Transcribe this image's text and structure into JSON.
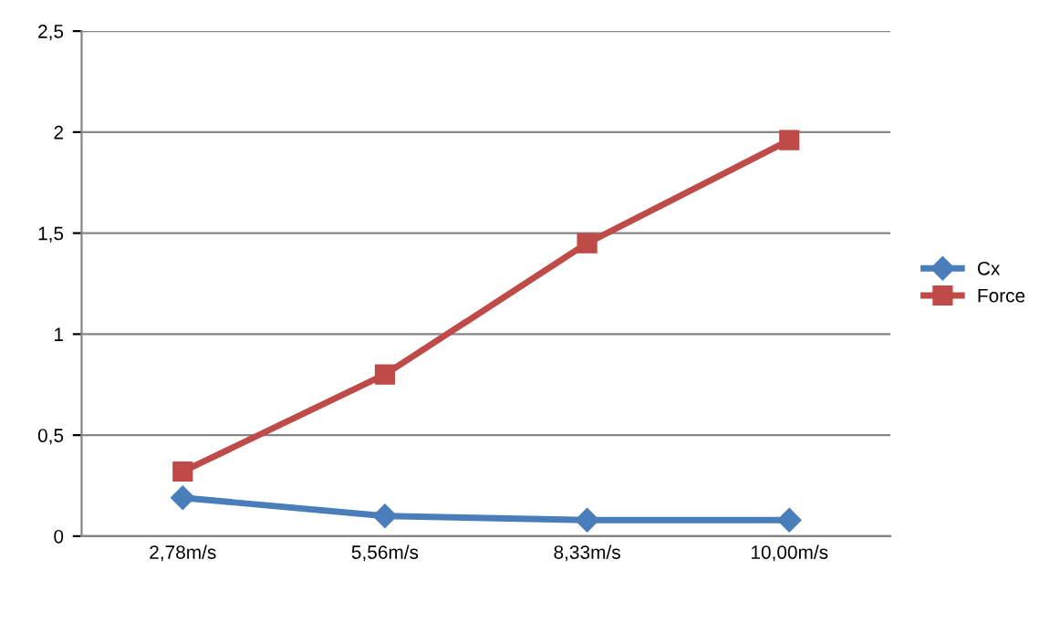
{
  "chart_data": {
    "type": "line",
    "categories": [
      "2,78m/s",
      "5,56m/s",
      "8,33m/s",
      "10,00m/s"
    ],
    "series": [
      {
        "name": "Cx",
        "color": "#4a7ebb",
        "marker": "diamond",
        "values": [
          0.19,
          0.1,
          0.08,
          0.08
        ]
      },
      {
        "name": "Force",
        "color": "#be4b48",
        "marker": "square",
        "values": [
          0.32,
          0.8,
          1.45,
          1.96
        ]
      }
    ],
    "ylim": [
      0,
      2.5
    ],
    "yticks": [
      0,
      {
        "value": 0.5,
        "label": "0,5"
      },
      1,
      {
        "value": 1.5,
        "label": "1,5"
      },
      2,
      {
        "value": 2.5,
        "label": "2,5"
      }
    ],
    "grid": "y",
    "legend": "right",
    "line_style": "solid"
  }
}
